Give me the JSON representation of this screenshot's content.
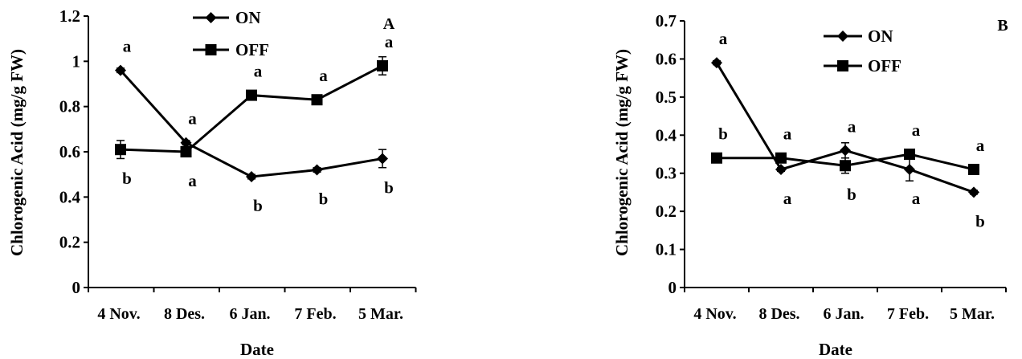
{
  "chart_data": [
    {
      "panel_label": "A",
      "type": "line",
      "categories": [
        "4 Nov.",
        "8 Des.",
        "6 Jan.",
        "7 Feb.",
        "5 Mar."
      ],
      "xlabel": "Date",
      "ylabel": "Chlorogenic Acid (mg/g FW)",
      "ylim": [
        0,
        1.2
      ],
      "yticks": [
        "0",
        "0.2",
        "0.4",
        "0.6",
        "0.8",
        "1",
        "1.2"
      ],
      "grid": false,
      "legend_position": "top-center",
      "series": [
        {
          "name": "ON",
          "marker": "diamond",
          "values": [
            0.96,
            0.64,
            0.49,
            0.52,
            0.57
          ],
          "errors": [
            0.01,
            0.01,
            0.01,
            0.01,
            0.04
          ],
          "letters": [
            "a",
            "a",
            "b",
            "b",
            "b"
          ],
          "letter_pos": [
            "above",
            "above",
            "below",
            "below",
            "below"
          ]
        },
        {
          "name": "OFF",
          "marker": "square",
          "values": [
            0.61,
            0.6,
            0.85,
            0.83,
            0.98
          ],
          "errors": [
            0.04,
            0.02,
            0.01,
            0.01,
            0.04
          ],
          "letters": [
            "b",
            "a",
            "a",
            "a",
            "a"
          ],
          "letter_pos": [
            "below",
            "below",
            "above",
            "above",
            "above"
          ]
        }
      ]
    },
    {
      "panel_label": "B",
      "type": "line",
      "categories": [
        "4 Nov.",
        "8 Des.",
        "6 Jan.",
        "7 Feb.",
        "5 Mar."
      ],
      "xlabel": "Date",
      "ylabel": "Chlorogenic Acid (mg/g FW)",
      "ylim": [
        0,
        0.7
      ],
      "yticks": [
        "0",
        "0.1",
        "0.2",
        "0.3",
        "0.4",
        "0.5",
        "0.6",
        "0.7"
      ],
      "grid": false,
      "legend_position": "top-center",
      "series": [
        {
          "name": "ON",
          "marker": "diamond",
          "values": [
            0.59,
            0.31,
            0.36,
            0.31,
            0.25
          ],
          "errors": [
            0.005,
            0.005,
            0.02,
            0.03,
            0.005
          ],
          "letters": [
            "a",
            "a",
            "a",
            "a",
            "b"
          ],
          "letter_pos": [
            "above",
            "below",
            "above",
            "below",
            "below"
          ]
        },
        {
          "name": "OFF",
          "marker": "square",
          "values": [
            0.34,
            0.34,
            0.32,
            0.35,
            0.31
          ],
          "errors": [
            0.005,
            0.005,
            0.02,
            0.005,
            0.005
          ],
          "letters": [
            "b",
            "a",
            "b",
            "a",
            "a"
          ],
          "letter_pos": [
            "above",
            "above",
            "below",
            "above",
            "above"
          ]
        }
      ]
    }
  ]
}
